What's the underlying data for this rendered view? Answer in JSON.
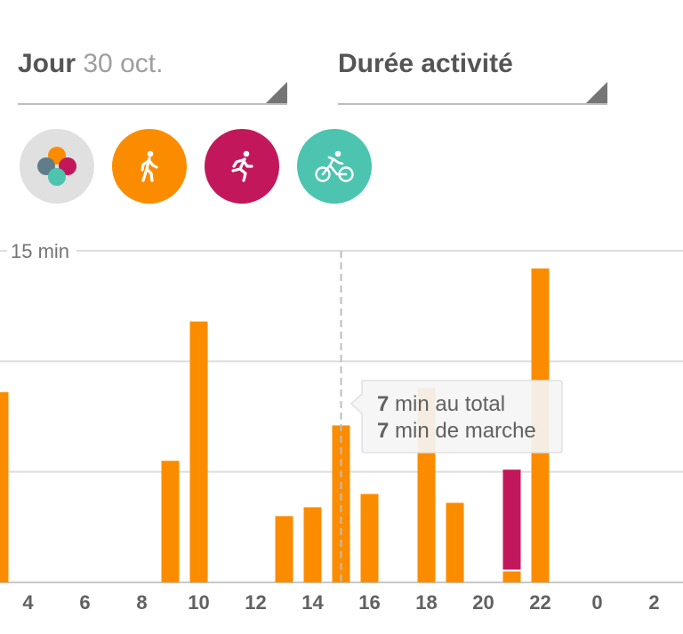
{
  "header": {
    "day_label": "Jour",
    "date_value": "30 oct.",
    "metric_label": "Durée activité"
  },
  "filters": [
    {
      "name": "all",
      "icon": "activity-dots-icon"
    },
    {
      "name": "walk",
      "icon": "walking-icon",
      "color": "#fb8c00"
    },
    {
      "name": "run",
      "icon": "running-icon",
      "color": "#c2185b"
    },
    {
      "name": "bike",
      "icon": "cycling-icon",
      "color": "#4dc4b0"
    }
  ],
  "tooltip": {
    "line1_num": "7",
    "line1_text": " min au total",
    "line2_num": "7",
    "line2_text": " min de marche"
  },
  "chart_data": {
    "type": "bar",
    "stacked": true,
    "title": "",
    "xlabel": "",
    "ylabel": "",
    "unit": "min",
    "ylim": [
      0,
      15
    ],
    "ytick_label": "15 min",
    "x_ticks": [
      "4",
      "6",
      "8",
      "10",
      "12",
      "14",
      "16",
      "18",
      "20",
      "22",
      "0",
      "2"
    ],
    "categories": [
      "3",
      "9",
      "10",
      "13",
      "14",
      "15",
      "16",
      "18",
      "19",
      "21",
      "22"
    ],
    "series": [
      {
        "key": "walk",
        "color": "#fb8c00",
        "values": [
          8.6,
          5.5,
          11.8,
          3.0,
          3.4,
          7.1,
          4.0,
          8.8,
          3.6,
          0.5,
          14.2
        ]
      },
      {
        "key": "run",
        "color": "#c2185b",
        "values": [
          0,
          0,
          0,
          0,
          0,
          0,
          0,
          0,
          0,
          4.6,
          0
        ]
      }
    ],
    "highlight": "15"
  }
}
